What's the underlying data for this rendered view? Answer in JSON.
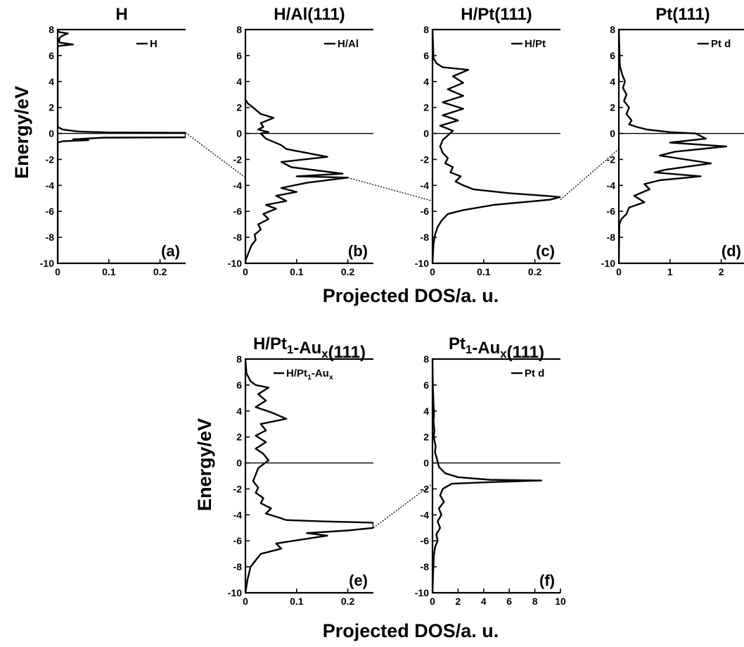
{
  "figure": {
    "ylabel_top": "Energy/eV",
    "ylabel_bottom": "Energy/eV",
    "xlabel_top": "Projected DOS/a. u.",
    "xlabel_bottom": "Projected DOS/a. u."
  },
  "chart_data": [
    {
      "id": "a",
      "type": "line",
      "title": "H",
      "label": "(a)",
      "legend": "H",
      "xlim": [
        0,
        0.25
      ],
      "ylim": [
        -10,
        8
      ],
      "xticks": [
        0,
        0.1,
        0.2
      ],
      "xtick_labels": [
        "0",
        "0.1",
        "0.2"
      ],
      "yticks": [
        -10,
        -8,
        -6,
        -4,
        -2,
        0,
        2,
        4,
        6,
        8
      ],
      "ytick_labels": [
        "-10",
        "-8",
        "-6",
        "-4",
        "-2",
        "0",
        "2",
        "4",
        "6",
        "8"
      ],
      "fermi_level": 0,
      "series": [
        {
          "x": [
            0,
            0,
            0.004,
            0.02,
            0.008,
            0.003,
            0.003,
            0.004,
            0.03,
            0.004,
            0,
            0,
            0.01,
            0.04,
            0.1,
            0.25,
            0.25,
            0.09,
            0.03,
            0.06,
            0.01,
            0,
            0
          ],
          "y": [
            8,
            7.9,
            7.8,
            7.7,
            7.5,
            7.3,
            7.1,
            7.0,
            6.85,
            6.75,
            6.7,
            0.5,
            0.3,
            0.15,
            0.08,
            0.05,
            -0.3,
            -0.32,
            -0.45,
            -0.52,
            -0.6,
            -0.7,
            -10
          ]
        }
      ]
    },
    {
      "id": "b",
      "type": "line",
      "title": "H/Al(111)",
      "label": "(b)",
      "legend": "H/Al",
      "xlim": [
        0,
        0.25
      ],
      "ylim": [
        -10,
        8
      ],
      "xticks": [
        0,
        0.1,
        0.2
      ],
      "xtick_labels": [
        "0",
        "0.1",
        "0.2"
      ],
      "yticks": [
        -10,
        -8,
        -6,
        -4,
        -2,
        0,
        2,
        4,
        6,
        8
      ],
      "ytick_labels": [
        "-10",
        "-8",
        "-6",
        "-4",
        "-2",
        "0",
        "2",
        "4",
        "6",
        "8"
      ],
      "fermi_level": 0,
      "series": [
        {
          "x": [
            0,
            0.005,
            0.015,
            0.03,
            0.055,
            0.03,
            0.035,
            0.025,
            0.045,
            0.03,
            0.04,
            0.07,
            0.08,
            0.16,
            0.07,
            0.09,
            0.19,
            0.1,
            0.2,
            0.12,
            0.07,
            0.1,
            0.06,
            0.08,
            0.04,
            0.06,
            0.035,
            0.045,
            0.025,
            0.03,
            0.018,
            0.02,
            0.012,
            0.006,
            0,
            0
          ],
          "y": [
            2.6,
            2.3,
            2.0,
            1.5,
            1.2,
            0.8,
            0.5,
            0.3,
            0.1,
            0,
            -0.4,
            -0.9,
            -1.2,
            -1.8,
            -2.2,
            -2.6,
            -3.1,
            -3.3,
            -3.4,
            -3.8,
            -4.2,
            -4.5,
            -4.8,
            -5.2,
            -5.5,
            -5.8,
            -6.2,
            -6.6,
            -7.0,
            -7.4,
            -7.8,
            -8.2,
            -8.6,
            -9.2,
            -9.8,
            -10
          ]
        }
      ]
    },
    {
      "id": "c",
      "type": "line",
      "title": "H/Pt(111)",
      "label": "(c)",
      "legend": "H/Pt",
      "xlim": [
        0,
        0.25
      ],
      "ylim": [
        -10,
        8
      ],
      "xticks": [
        0,
        0.1,
        0.2
      ],
      "xtick_labels": [
        "0",
        "0.1",
        "0.2"
      ],
      "yticks": [
        -10,
        -8,
        -6,
        -4,
        -2,
        0,
        2,
        4,
        6,
        8
      ],
      "ytick_labels": [
        "-10",
        "-8",
        "-6",
        "-4",
        "-2",
        "0",
        "2",
        "4",
        "6",
        "8"
      ],
      "fermi_level": 0,
      "series": [
        {
          "x": [
            0,
            0.002,
            0.008,
            0.02,
            0.07,
            0.04,
            0.06,
            0.03,
            0.06,
            0.02,
            0.06,
            0.02,
            0.05,
            0.015,
            0.04,
            0.02,
            0.015,
            0.02,
            0.03,
            0.025,
            0.04,
            0.035,
            0.055,
            0.045,
            0.06,
            0.08,
            0.15,
            0.22,
            0.25,
            0.23,
            0.12,
            0.06,
            0.03,
            0.018,
            0.01,
            0.005,
            0.002,
            0
          ],
          "y": [
            8,
            5.8,
            5.4,
            5.1,
            4.9,
            4.4,
            3.9,
            3.4,
            2.9,
            2.4,
            1.9,
            1.4,
            1.0,
            0.6,
            0.2,
            -0.5,
            -1.0,
            -1.5,
            -1.9,
            -2.3,
            -2.6,
            -3.0,
            -3.3,
            -3.7,
            -4.0,
            -4.3,
            -4.6,
            -4.8,
            -4.9,
            -5.1,
            -5.5,
            -5.9,
            -6.2,
            -6.7,
            -7.2,
            -7.8,
            -8.5,
            -10
          ]
        }
      ]
    },
    {
      "id": "d",
      "type": "line",
      "title": "Pt(111)",
      "label": "(d)",
      "legend": "Pt d",
      "xlim": [
        0,
        2.5
      ],
      "ylim": [
        -10,
        8
      ],
      "xticks": [
        0,
        1,
        2
      ],
      "xtick_labels": [
        "0",
        "1",
        "2"
      ],
      "yticks": [
        -10,
        -8,
        -6,
        -4,
        -2,
        0,
        2,
        4,
        6,
        8
      ],
      "ytick_labels": [
        "-10",
        "-8",
        "-6",
        "-4",
        "-2",
        "0",
        "2",
        "4",
        "6",
        "8"
      ],
      "fermi_level": 0,
      "series": [
        {
          "x": [
            0,
            0.02,
            0.06,
            0.12,
            0.08,
            0.15,
            0.1,
            0.2,
            0.15,
            0.25,
            0.2,
            0.35,
            0.55,
            1.0,
            1.5,
            1.7,
            1.0,
            2.1,
            1.1,
            0.8,
            1.8,
            0.9,
            0.7,
            1.6,
            0.8,
            0.5,
            0.6,
            0.3,
            0.5,
            0.2,
            0.15,
            0.05,
            0.01,
            0
          ],
          "y": [
            8,
            5.2,
            4.6,
            4.0,
            3.5,
            3.0,
            2.5,
            2.0,
            1.5,
            1.0,
            0.7,
            0.5,
            0.3,
            0.1,
            0,
            -0.4,
            -0.7,
            -1.0,
            -1.4,
            -1.7,
            -2.3,
            -2.8,
            -3.0,
            -3.3,
            -3.6,
            -3.9,
            -4.3,
            -4.8,
            -5.3,
            -5.7,
            -6.2,
            -6.6,
            -7.0,
            -10
          ]
        }
      ]
    },
    {
      "id": "e",
      "type": "line",
      "title": "H/Pt",
      "title_sub": "1",
      "title_rest": "-Au",
      "title_sub2": "x",
      "title_tail": "(111)",
      "label": "(e)",
      "legend": "H/Pt",
      "legend_sub": "1",
      "legend_rest": "-Au",
      "legend_sub2": "x",
      "xlim": [
        0,
        0.25
      ],
      "ylim": [
        -10,
        8
      ],
      "xticks": [
        0,
        0.1,
        0.2
      ],
      "xtick_labels": [
        "0",
        "0.1",
        "0.2"
      ],
      "yticks": [
        -10,
        -8,
        -6,
        -4,
        -2,
        0,
        2,
        4,
        6,
        8
      ],
      "ytick_labels": [
        "-10",
        "-8",
        "-6",
        "-4",
        "-2",
        "0",
        "2",
        "4",
        "6",
        "8"
      ],
      "fermi_level": 0,
      "series": [
        {
          "x": [
            0,
            0.002,
            0.01,
            0.02,
            0.045,
            0.025,
            0.04,
            0.02,
            0.05,
            0.08,
            0.03,
            0.04,
            0.02,
            0.04,
            0.02,
            0.035,
            0.045,
            0.025,
            0.02,
            0.015,
            0.025,
            0.02,
            0.035,
            0.03,
            0.05,
            0.04,
            0.065,
            0.08,
            0.15,
            0.25,
            0.25,
            0.2,
            0.12,
            0.16,
            0.06,
            0.07,
            0.03,
            0.02,
            0.01,
            0.004,
            0
          ],
          "y": [
            8,
            6.9,
            6.3,
            6.0,
            5.8,
            5.3,
            4.8,
            4.3,
            3.9,
            3.4,
            3.0,
            2.5,
            2.1,
            1.6,
            1.1,
            0.7,
            0.2,
            -0.4,
            -0.9,
            -1.4,
            -1.9,
            -2.3,
            -2.7,
            -3.1,
            -3.5,
            -3.9,
            -4.2,
            -4.4,
            -4.5,
            -4.6,
            -5.0,
            -5.2,
            -5.4,
            -5.6,
            -6.2,
            -6.6,
            -7.0,
            -7.5,
            -8.0,
            -9.0,
            -10
          ]
        }
      ]
    },
    {
      "id": "f",
      "type": "line",
      "title": "Pt",
      "title_sub": "1",
      "title_rest": "-Au",
      "title_sub2": "x",
      "title_tail": "(111)",
      "label": "(f)",
      "legend": "Pt d",
      "xlim": [
        0,
        10
      ],
      "ylim": [
        -10,
        8
      ],
      "xticks": [
        0,
        2,
        4,
        6,
        8,
        10
      ],
      "xtick_labels": [
        "0",
        "2",
        "4",
        "6",
        "8",
        "10"
      ],
      "yticks": [
        -10,
        -8,
        -6,
        -4,
        -2,
        0,
        2,
        4,
        6,
        8
      ],
      "ytick_labels": [
        "-10",
        "-8",
        "-6",
        "-4",
        "-2",
        "0",
        "2",
        "4",
        "6",
        "8"
      ],
      "fermi_level": 0,
      "series": [
        {
          "x": [
            0,
            0.03,
            0.08,
            0.12,
            0.08,
            0.15,
            0.1,
            0.25,
            0.2,
            0.35,
            0.5,
            1.0,
            2.0,
            4.5,
            8.5,
            4.0,
            1.5,
            0.8,
            0.6,
            0.9,
            0.5,
            0.7,
            0.4,
            0.6,
            0.3,
            0.4,
            0.2,
            0.1,
            0.05,
            0
          ],
          "y": [
            8,
            6.0,
            4.5,
            3.8,
            3.2,
            2.5,
            2.0,
            1.3,
            0.8,
            0.3,
            -0.3,
            -0.8,
            -1.1,
            -1.3,
            -1.35,
            -1.5,
            -1.6,
            -2.0,
            -2.5,
            -3.0,
            -3.5,
            -4.0,
            -4.5,
            -5.0,
            -5.5,
            -6.0,
            -6.5,
            -7.2,
            -8.5,
            -10
          ]
        }
      ]
    }
  ]
}
